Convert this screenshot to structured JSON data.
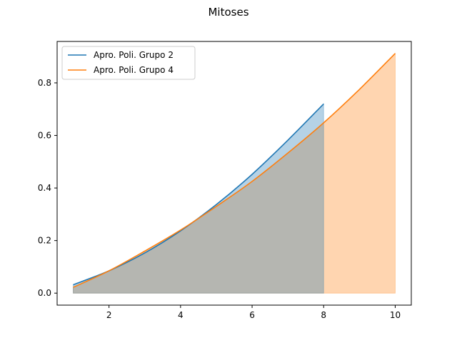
{
  "chart_data": {
    "type": "line",
    "title": "Mitoses",
    "xlabel": "",
    "ylabel": "",
    "xlim": [
      0.55,
      10.45
    ],
    "ylim": [
      -0.0456,
      0.9576
    ],
    "xticks": [
      2,
      4,
      6,
      8,
      10
    ],
    "yticks": [
      0.0,
      0.2,
      0.4,
      0.6,
      0.8
    ],
    "xtick_labels": [
      "2",
      "4",
      "6",
      "8",
      "10"
    ],
    "ytick_labels": [
      "0.0",
      "0.2",
      "0.4",
      "0.6",
      "0.8"
    ],
    "grid": false,
    "legend_position": "top-left",
    "series": [
      {
        "name": "Apro. Poli. Grupo 2",
        "color": "#1f77b4",
        "fill": true,
        "x": [
          1,
          2,
          3,
          4,
          5,
          6,
          7,
          8
        ],
        "y": [
          0.032,
          0.085,
          0.153,
          0.237,
          0.337,
          0.452,
          0.582,
          0.72
        ]
      },
      {
        "name": "Apro. Poli. Grupo 4",
        "color": "#ff7f0e",
        "fill": true,
        "x": [
          1,
          2,
          3,
          4,
          5,
          6,
          7,
          8,
          9,
          10
        ],
        "y": [
          0.022,
          0.085,
          0.16,
          0.24,
          0.33,
          0.425,
          0.533,
          0.648,
          0.775,
          0.912
        ]
      }
    ]
  }
}
